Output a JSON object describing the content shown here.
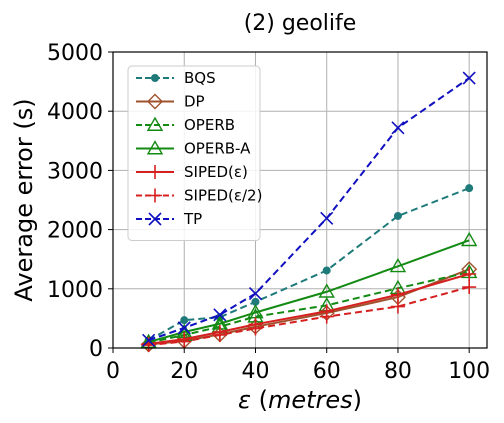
{
  "chart_data": {
    "type": "line",
    "title": "(2) geolife",
    "xlabel_prefix": "ε",
    "xlabel_unit": "metres",
    "ylabel": "Average error (s)",
    "x": [
      10,
      20,
      30,
      40,
      60,
      80,
      100
    ],
    "xlim": [
      0,
      105
    ],
    "ylim": [
      0,
      5000
    ],
    "xticks": [
      0,
      20,
      40,
      60,
      80,
      100
    ],
    "yticks": [
      0,
      1000,
      2000,
      3000,
      4000,
      5000
    ],
    "grid": true,
    "legend_position": "top-left",
    "series": [
      {
        "name": "BQS",
        "color": "#1f7a7a",
        "dash": "dashed",
        "marker": "dot",
        "values": [
          130,
          470,
          520,
          780,
          1310,
          2230,
          2700
        ]
      },
      {
        "name": "DP",
        "color": "#a0522d",
        "dash": "solid",
        "marker": "diamond",
        "values": [
          60,
          120,
          230,
          360,
          590,
          860,
          1330
        ]
      },
      {
        "name": "OPERB",
        "color": "#138a13",
        "dash": "dashed",
        "marker": "triangle",
        "values": [
          90,
          220,
          360,
          530,
          720,
          1010,
          1280
        ]
      },
      {
        "name": "OPERB-A",
        "color": "#138a13",
        "dash": "solid",
        "marker": "triangle",
        "values": [
          100,
          270,
          410,
          600,
          950,
          1380,
          1820
        ]
      },
      {
        "name": "SIPED(ε)",
        "color": "#d62020",
        "dash": "solid",
        "marker": "plus",
        "values": [
          70,
          150,
          270,
          400,
          620,
          900,
          1250
        ]
      },
      {
        "name": "SIPED(ε/2)",
        "color": "#d62020",
        "dash": "dashed",
        "marker": "plus",
        "values": [
          50,
          110,
          220,
          330,
          530,
          700,
          1030
        ]
      },
      {
        "name": "TP",
        "color": "#1010c0",
        "dash": "dashed",
        "marker": "x",
        "values": [
          130,
          340,
          560,
          920,
          2190,
          3720,
          4560
        ]
      }
    ]
  }
}
